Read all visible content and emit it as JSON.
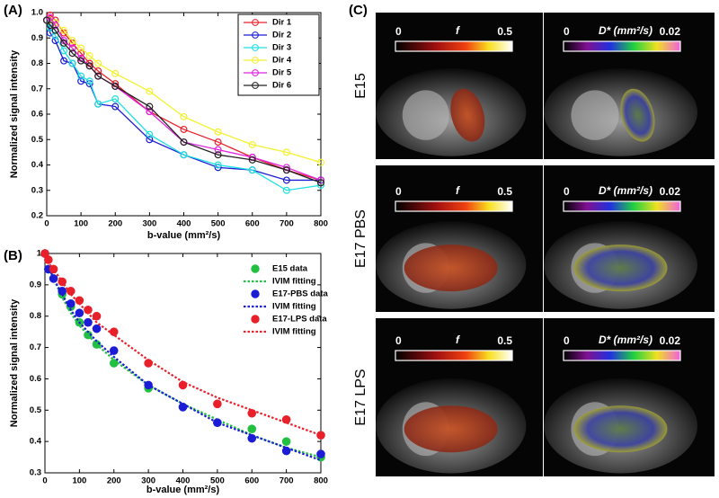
{
  "chart_data": [
    {
      "type": "line",
      "label": "(A)",
      "x_label": "b-value (mm²/s)",
      "y_label": "Normalized signal intensity",
      "x": [
        0,
        10,
        25,
        50,
        75,
        100,
        125,
        150,
        200,
        300,
        400,
        500,
        600,
        700,
        800
      ],
      "xlim": [
        0,
        800
      ],
      "xticks": [
        0,
        100,
        200,
        300,
        400,
        500,
        600,
        700,
        800
      ],
      "ylim": [
        0.2,
        1.0
      ],
      "yticks": [
        0.2,
        0.3,
        0.4,
        0.5,
        0.6,
        0.7,
        0.8,
        0.9,
        {
          "value": 1.0,
          "label": "1.0"
        }
      ],
      "grid": false,
      "legend": "upper right",
      "legend_frame": true,
      "series": [
        {
          "name": "Dir 1",
          "color": "#e8202a",
          "marker": "open-circle",
          "line_style": "solid",
          "values": [
            0.97,
            0.99,
            0.97,
            0.92,
            0.88,
            0.84,
            0.8,
            0.77,
            0.72,
            0.61,
            0.54,
            0.49,
            0.43,
            0.38,
            0.34
          ]
        },
        {
          "name": "Dir 2",
          "color": "#1c1cd6",
          "marker": "open-circle",
          "line_style": "solid",
          "values": [
            0.97,
            0.92,
            0.89,
            0.81,
            0.8,
            0.73,
            0.72,
            0.64,
            0.63,
            0.5,
            0.44,
            0.39,
            0.38,
            0.34,
            0.34
          ]
        },
        {
          "name": "Dir 3",
          "color": "#1ee0e0",
          "marker": "open-circle",
          "line_style": "solid",
          "values": [
            0.97,
            0.94,
            0.91,
            0.85,
            0.8,
            0.75,
            0.73,
            0.64,
            0.66,
            0.52,
            0.44,
            0.4,
            0.38,
            0.3,
            0.32
          ]
        },
        {
          "name": "Dir 4",
          "color": "#f4f030",
          "marker": "open-circle",
          "line_style": "solid",
          "values": [
            0.97,
            0.97,
            0.96,
            0.93,
            0.89,
            0.86,
            0.83,
            0.8,
            0.76,
            0.69,
            0.59,
            0.53,
            0.48,
            0.45,
            0.41
          ]
        },
        {
          "name": "Dir 5",
          "color": "#e020e0",
          "marker": "open-circle",
          "line_style": "solid",
          "values": [
            0.97,
            0.98,
            0.95,
            0.89,
            0.86,
            0.82,
            0.79,
            0.75,
            0.71,
            0.61,
            0.49,
            0.46,
            0.43,
            0.39,
            0.34
          ]
        },
        {
          "name": "Dir 6",
          "color": "#222222",
          "marker": "open-circle",
          "line_style": "solid",
          "values": [
            0.97,
            0.95,
            0.93,
            0.88,
            0.84,
            0.81,
            0.79,
            0.75,
            0.71,
            0.63,
            0.49,
            0.44,
            0.42,
            0.38,
            0.33
          ]
        }
      ]
    },
    {
      "type": "line",
      "label": "(B)",
      "x_label": "b-value (mm²/s)",
      "y_label": "Normalized signal intensity",
      "x": [
        0,
        10,
        25,
        50,
        75,
        100,
        125,
        150,
        200,
        300,
        400,
        500,
        600,
        700,
        800
      ],
      "xlim": [
        0,
        800
      ],
      "xticks": [
        0,
        100,
        200,
        300,
        400,
        500,
        600,
        700,
        800
      ],
      "ylim": [
        0.3,
        1.0
      ],
      "yticks": [
        0.3,
        0.4,
        0.5,
        0.6,
        0.7,
        0.8,
        0.9,
        1
      ],
      "grid": false,
      "legend": "upper right",
      "legend_frame": false,
      "series": [
        {
          "name": "E15 data",
          "color": "#22c040",
          "marker": "filled-circle",
          "line_style": "none",
          "values": [
            1.0,
            0.95,
            0.92,
            0.87,
            0.83,
            0.78,
            0.74,
            0.71,
            0.65,
            0.57,
            0.51,
            0.46,
            0.44,
            0.4,
            0.35
          ]
        },
        {
          "name": "IVIM fitting",
          "color": "#22c040",
          "marker": "none",
          "line_style": "dotted",
          "values": [
            1.0,
            0.96,
            0.92,
            0.86,
            0.81,
            0.77,
            0.74,
            0.71,
            0.66,
            0.58,
            0.52,
            0.47,
            0.42,
            0.38,
            0.35
          ]
        },
        {
          "name": "E17-PBS data",
          "color": "#1c1cd6",
          "marker": "filled-circle",
          "line_style": "none",
          "values": [
            1.0,
            0.95,
            0.92,
            0.88,
            0.84,
            0.81,
            0.78,
            0.76,
            0.69,
            0.58,
            0.51,
            0.46,
            0.41,
            0.37,
            0.36
          ]
        },
        {
          "name": "IVIM fitting",
          "color": "#1c1cd6",
          "marker": "none",
          "line_style": "dotted",
          "values": [
            1.0,
            0.96,
            0.92,
            0.87,
            0.82,
            0.78,
            0.75,
            0.72,
            0.67,
            0.58,
            0.52,
            0.46,
            0.42,
            0.38,
            0.34
          ]
        },
        {
          "name": "E17-LPS data",
          "color": "#e8202a",
          "marker": "filled-circle",
          "line_style": "none",
          "values": [
            1.0,
            0.98,
            0.95,
            0.91,
            0.88,
            0.85,
            0.82,
            0.8,
            0.75,
            0.65,
            0.58,
            0.52,
            0.49,
            0.47,
            0.42
          ]
        },
        {
          "name": "IVIM fitting",
          "color": "#e8202a",
          "marker": "none",
          "line_style": "dotted",
          "values": [
            1.0,
            0.97,
            0.95,
            0.91,
            0.87,
            0.84,
            0.81,
            0.78,
            0.74,
            0.66,
            0.59,
            0.54,
            0.5,
            0.46,
            0.42
          ]
        }
      ]
    }
  ],
  "panel_c": {
    "label": "(C)",
    "rows": [
      {
        "label": "E15",
        "f_bar": {
          "min": 0,
          "symbol": "f",
          "max": 0.5
        },
        "dstar_bar": {
          "min": 0,
          "symbol": "D* (mm²/s)",
          "max": 0.02
        }
      },
      {
        "label": "E17 PBS",
        "f_bar": {
          "min": 0,
          "symbol": "f",
          "max": 0.5
        },
        "dstar_bar": {
          "min": 0,
          "symbol": "D* (mm²/s)",
          "max": 0.02
        }
      },
      {
        "label": "E17 LPS",
        "f_bar": {
          "min": 0,
          "symbol": "f",
          "max": 0.5
        },
        "dstar_bar": {
          "min": 0,
          "symbol": "D* (mm²/s)",
          "max": 0.02
        }
      }
    ]
  }
}
